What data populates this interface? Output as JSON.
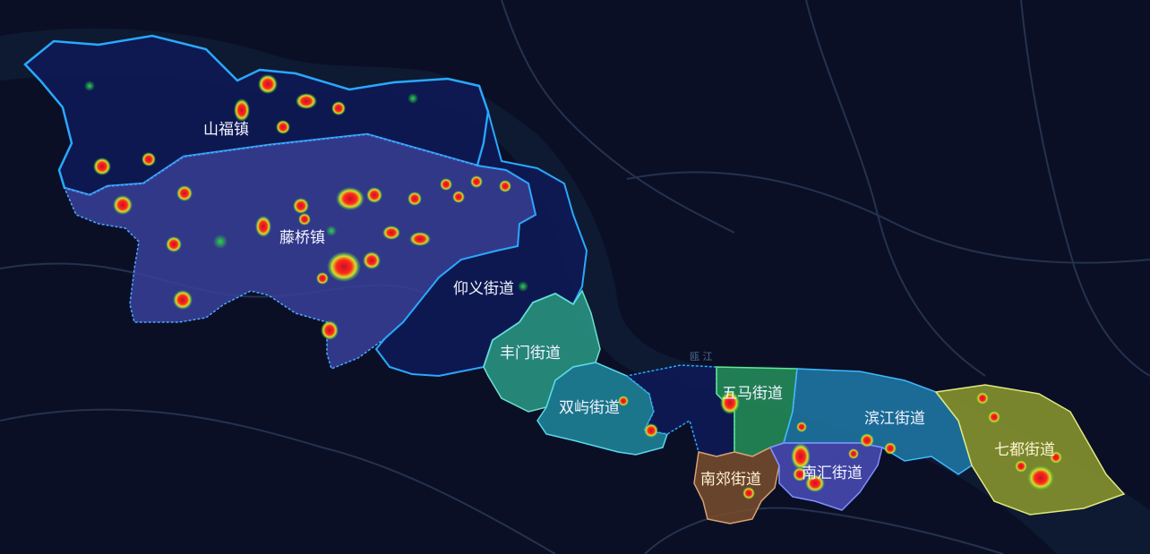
{
  "map": {
    "base": {
      "background": "#0a0f26",
      "road_color": "#2c3c5c",
      "water_color": "#18324a",
      "river_label": "瓯 江"
    },
    "boundary_color": "#2aa8ff",
    "districts": [
      {
        "id": "shanfu",
        "name": "山福镇",
        "fill": "#0e1a58"
      },
      {
        "id": "tengqiao",
        "name": "藤桥镇",
        "fill": "#3a3f9a"
      },
      {
        "id": "yangyi",
        "name": "仰义街道",
        "fill": "#0e1a58"
      },
      {
        "id": "fengmen",
        "name": "丰门街道",
        "fill": "#2a9a86"
      },
      {
        "id": "shuangyu",
        "name": "双屿街道",
        "fill": "#20889e"
      },
      {
        "id": "wuma",
        "name": "五马街道",
        "fill": "#25905a"
      },
      {
        "id": "binjiang",
        "name": "滨江街道",
        "fill": "#1f7aa8"
      },
      {
        "id": "nanjiao",
        "name": "南郊街道",
        "fill": "#7a4e2e"
      },
      {
        "id": "nanhui",
        "name": "南汇街道",
        "fill": "#4a4cb8"
      },
      {
        "id": "qidu",
        "name": "七都街道",
        "fill": "#8c9a2e"
      },
      {
        "id": "center",
        "name": "",
        "fill": "#0e1a58"
      }
    ],
    "heat_colors": [
      "#2bd64a",
      "#d8e02a",
      "#ff2a1a",
      "#c8102a"
    ]
  }
}
